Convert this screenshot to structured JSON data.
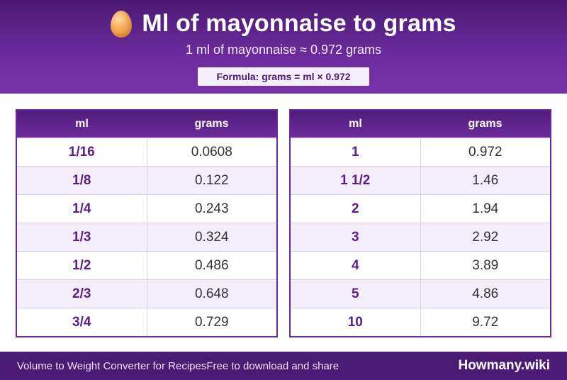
{
  "header": {
    "icon": "egg-icon",
    "title": "Ml of mayonnaise to grams",
    "subtitle": "1 ml of mayonnaise ≈ 0.972 grams",
    "formula": "Formula: grams = ml × 0.972"
  },
  "columns": {
    "ml": "ml",
    "grams": "grams"
  },
  "left_table": [
    {
      "ml": "1/16",
      "grams": "0.0608"
    },
    {
      "ml": "1/8",
      "grams": "0.122"
    },
    {
      "ml": "1/4",
      "grams": "0.243"
    },
    {
      "ml": "1/3",
      "grams": "0.324"
    },
    {
      "ml": "1/2",
      "grams": "0.486"
    },
    {
      "ml": "2/3",
      "grams": "0.648"
    },
    {
      "ml": "3/4",
      "grams": "0.729"
    }
  ],
  "right_table": [
    {
      "ml": "1",
      "grams": "0.972"
    },
    {
      "ml": "1 1/2",
      "grams": "1.46"
    },
    {
      "ml": "2",
      "grams": "1.94"
    },
    {
      "ml": "3",
      "grams": "2.92"
    },
    {
      "ml": "4",
      "grams": "3.89"
    },
    {
      "ml": "5",
      "grams": "4.86"
    },
    {
      "ml": "10",
      "grams": "9.72"
    }
  ],
  "footer": {
    "left_text": "Volume to Weight Converter for Recipes",
    "left_text_2": "Free to download and share",
    "brand": "Howmany.wiki"
  },
  "colors": {
    "header_purple": "#6a2a9a",
    "dark_purple": "#4a1a74",
    "accent_text": "#5a1f86",
    "alt_row": "#f4eefa"
  }
}
